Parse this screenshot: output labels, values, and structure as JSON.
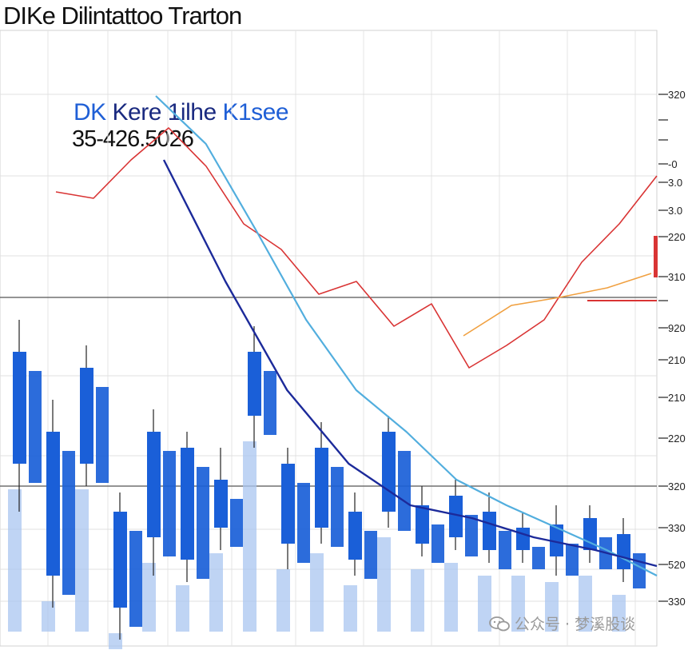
{
  "chart_data": {
    "type": "candlestick-line",
    "title": "DIKe Dilintattoo Trarton",
    "subtitle": {
      "part1": "DK",
      "part2": "Kere",
      "part3": "1ilhe",
      "part4": "K1see"
    },
    "price_text": "35-426.5026",
    "y_tick_labels": [
      "320",
      "",
      "",
      "-0",
      "3.0",
      "3.0",
      "220",
      "310",
      "",
      "920",
      "210",
      "210",
      "220",
      "320",
      "330",
      "520",
      "330"
    ],
    "grid": true,
    "candles_blue": [
      {
        "o": 230,
        "c": 195,
        "h": 240,
        "l": 180
      },
      {
        "o": 205,
        "c": 160,
        "h": 215,
        "l": 150
      },
      {
        "o": 225,
        "c": 195,
        "h": 232,
        "l": 188
      },
      {
        "o": 180,
        "c": 150,
        "h": 186,
        "l": 140
      },
      {
        "o": 205,
        "c": 172,
        "h": 212,
        "l": 160
      },
      {
        "o": 200,
        "c": 165,
        "h": 205,
        "l": 158
      },
      {
        "o": 190,
        "c": 175,
        "h": 200,
        "l": 168
      },
      {
        "o": 230,
        "c": 210,
        "h": 238,
        "l": 200
      },
      {
        "o": 195,
        "c": 170,
        "h": 200,
        "l": 162
      },
      {
        "o": 200,
        "c": 175,
        "h": 208,
        "l": 170
      },
      {
        "o": 180,
        "c": 165,
        "h": 186,
        "l": 160
      },
      {
        "o": 205,
        "c": 180,
        "h": 210,
        "l": 175
      },
      {
        "o": 182,
        "c": 170,
        "h": 188,
        "l": 166
      },
      {
        "o": 185,
        "c": 172,
        "h": 190,
        "l": 168
      },
      {
        "o": 180,
        "c": 168,
        "h": 186,
        "l": 164
      },
      {
        "o": 175,
        "c": 168,
        "h": 180,
        "l": 164
      },
      {
        "o": 176,
        "c": 166,
        "h": 182,
        "l": 160
      },
      {
        "o": 178,
        "c": 168,
        "h": 182,
        "l": 164
      },
      {
        "o": 173,
        "c": 162,
        "h": 178,
        "l": 158
      }
    ],
    "lines": {
      "red": [
        280,
        278,
        290,
        300,
        288,
        270,
        262,
        248,
        252,
        238,
        245,
        225,
        232,
        240,
        258,
        270,
        285
      ],
      "light_blue": [
        310,
        295,
        268,
        240,
        218,
        205,
        190,
        182,
        175,
        168,
        160
      ],
      "dark_blue": [
        290,
        252,
        218,
        195,
        182,
        178,
        172,
        168,
        163
      ]
    }
  },
  "watermark": {
    "icon": "wechat-icon",
    "text": "公众号 · 梦溪股谈"
  },
  "colors": {
    "blue": "#1a5fd8",
    "light_blue": "#a9c6f0",
    "red": "#d93434",
    "navy": "#1c2a9a",
    "sky": "#52aede",
    "orange": "#f0a040"
  }
}
